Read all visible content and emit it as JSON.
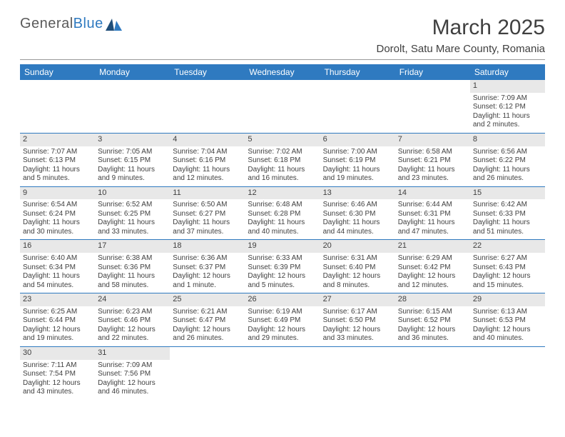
{
  "logo": {
    "word1": "General",
    "word2": "Blue"
  },
  "title": "March 2025",
  "subtitle": "Dorolt, Satu Mare County, Romania",
  "colors": {
    "header_bg": "#2f7ac0",
    "header_fg": "#ffffff",
    "text": "#404040",
    "row_border": "#2f7ac0",
    "daynum_bg": "#e8e8e8",
    "page_bg": "#ffffff"
  },
  "weekdays": [
    "Sunday",
    "Monday",
    "Tuesday",
    "Wednesday",
    "Thursday",
    "Friday",
    "Saturday"
  ],
  "weeks": [
    [
      null,
      null,
      null,
      null,
      null,
      null,
      {
        "n": "1",
        "sr": "7:09 AM",
        "ss": "6:12 PM",
        "dl": "11 hours and 2 minutes."
      }
    ],
    [
      {
        "n": "2",
        "sr": "7:07 AM",
        "ss": "6:13 PM",
        "dl": "11 hours and 5 minutes."
      },
      {
        "n": "3",
        "sr": "7:05 AM",
        "ss": "6:15 PM",
        "dl": "11 hours and 9 minutes."
      },
      {
        "n": "4",
        "sr": "7:04 AM",
        "ss": "6:16 PM",
        "dl": "11 hours and 12 minutes."
      },
      {
        "n": "5",
        "sr": "7:02 AM",
        "ss": "6:18 PM",
        "dl": "11 hours and 16 minutes."
      },
      {
        "n": "6",
        "sr": "7:00 AM",
        "ss": "6:19 PM",
        "dl": "11 hours and 19 minutes."
      },
      {
        "n": "7",
        "sr": "6:58 AM",
        "ss": "6:21 PM",
        "dl": "11 hours and 23 minutes."
      },
      {
        "n": "8",
        "sr": "6:56 AM",
        "ss": "6:22 PM",
        "dl": "11 hours and 26 minutes."
      }
    ],
    [
      {
        "n": "9",
        "sr": "6:54 AM",
        "ss": "6:24 PM",
        "dl": "11 hours and 30 minutes."
      },
      {
        "n": "10",
        "sr": "6:52 AM",
        "ss": "6:25 PM",
        "dl": "11 hours and 33 minutes."
      },
      {
        "n": "11",
        "sr": "6:50 AM",
        "ss": "6:27 PM",
        "dl": "11 hours and 37 minutes."
      },
      {
        "n": "12",
        "sr": "6:48 AM",
        "ss": "6:28 PM",
        "dl": "11 hours and 40 minutes."
      },
      {
        "n": "13",
        "sr": "6:46 AM",
        "ss": "6:30 PM",
        "dl": "11 hours and 44 minutes."
      },
      {
        "n": "14",
        "sr": "6:44 AM",
        "ss": "6:31 PM",
        "dl": "11 hours and 47 minutes."
      },
      {
        "n": "15",
        "sr": "6:42 AM",
        "ss": "6:33 PM",
        "dl": "11 hours and 51 minutes."
      }
    ],
    [
      {
        "n": "16",
        "sr": "6:40 AM",
        "ss": "6:34 PM",
        "dl": "11 hours and 54 minutes."
      },
      {
        "n": "17",
        "sr": "6:38 AM",
        "ss": "6:36 PM",
        "dl": "11 hours and 58 minutes."
      },
      {
        "n": "18",
        "sr": "6:36 AM",
        "ss": "6:37 PM",
        "dl": "12 hours and 1 minute."
      },
      {
        "n": "19",
        "sr": "6:33 AM",
        "ss": "6:39 PM",
        "dl": "12 hours and 5 minutes."
      },
      {
        "n": "20",
        "sr": "6:31 AM",
        "ss": "6:40 PM",
        "dl": "12 hours and 8 minutes."
      },
      {
        "n": "21",
        "sr": "6:29 AM",
        "ss": "6:42 PM",
        "dl": "12 hours and 12 minutes."
      },
      {
        "n": "22",
        "sr": "6:27 AM",
        "ss": "6:43 PM",
        "dl": "12 hours and 15 minutes."
      }
    ],
    [
      {
        "n": "23",
        "sr": "6:25 AM",
        "ss": "6:44 PM",
        "dl": "12 hours and 19 minutes."
      },
      {
        "n": "24",
        "sr": "6:23 AM",
        "ss": "6:46 PM",
        "dl": "12 hours and 22 minutes."
      },
      {
        "n": "25",
        "sr": "6:21 AM",
        "ss": "6:47 PM",
        "dl": "12 hours and 26 minutes."
      },
      {
        "n": "26",
        "sr": "6:19 AM",
        "ss": "6:49 PM",
        "dl": "12 hours and 29 minutes."
      },
      {
        "n": "27",
        "sr": "6:17 AM",
        "ss": "6:50 PM",
        "dl": "12 hours and 33 minutes."
      },
      {
        "n": "28",
        "sr": "6:15 AM",
        "ss": "6:52 PM",
        "dl": "12 hours and 36 minutes."
      },
      {
        "n": "29",
        "sr": "6:13 AM",
        "ss": "6:53 PM",
        "dl": "12 hours and 40 minutes."
      }
    ],
    [
      {
        "n": "30",
        "sr": "7:11 AM",
        "ss": "7:54 PM",
        "dl": "12 hours and 43 minutes."
      },
      {
        "n": "31",
        "sr": "7:09 AM",
        "ss": "7:56 PM",
        "dl": "12 hours and 46 minutes."
      },
      null,
      null,
      null,
      null,
      null
    ]
  ],
  "labels": {
    "sunrise": "Sunrise:",
    "sunset": "Sunset:",
    "daylight": "Daylight:"
  }
}
